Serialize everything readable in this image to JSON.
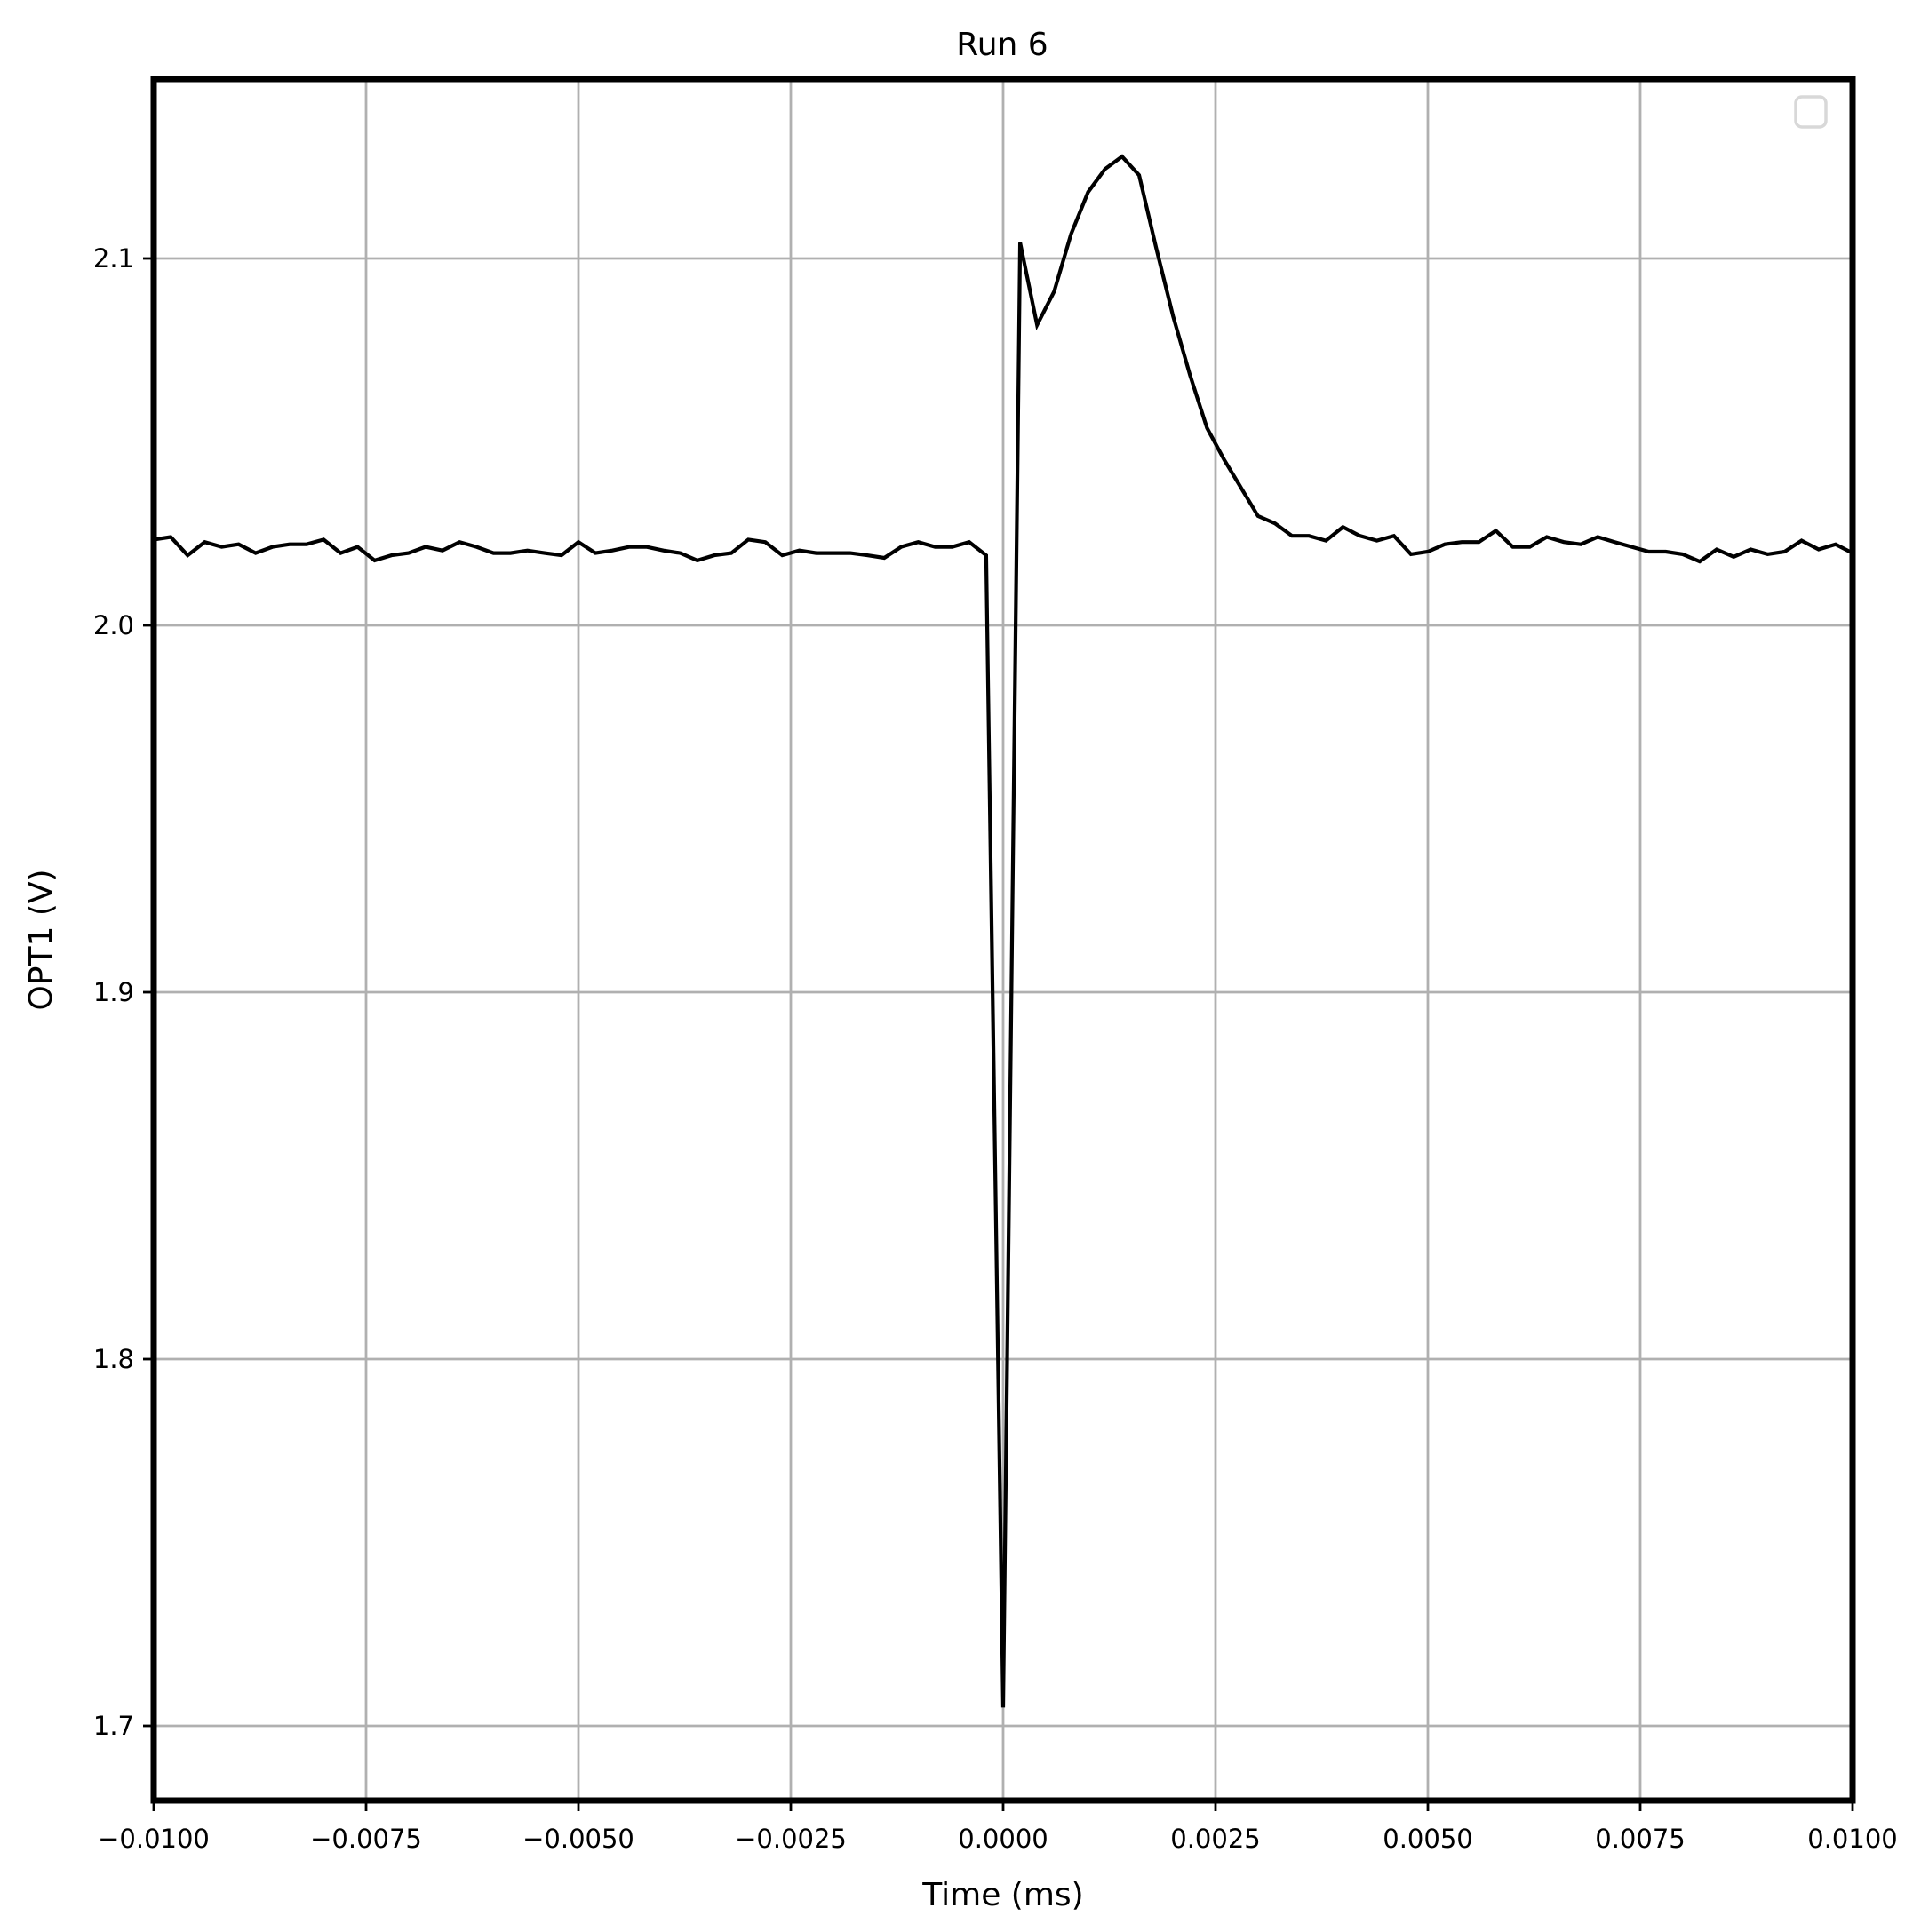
{
  "chart_data": {
    "type": "line",
    "title": "Run 6",
    "xlabel": "Time (ms)",
    "ylabel": "OPT1 (V)",
    "xlim": [
      -0.01,
      0.01
    ],
    "ylim": [
      1.68,
      2.149
    ],
    "grid": true,
    "legend": {
      "position": "upper right",
      "entries": []
    },
    "xticks": [
      -0.01,
      -0.0075,
      -0.005,
      -0.0025,
      0.0,
      0.0025,
      0.005,
      0.0075,
      0.01
    ],
    "xtick_labels": [
      "−0.0100",
      "−0.0075",
      "−0.0050",
      "−0.0025",
      "0.0000",
      "0.0025",
      "0.0050",
      "0.0075",
      "0.0100"
    ],
    "yticks": [
      1.7,
      1.8,
      1.9,
      2.0,
      2.1
    ],
    "ytick_labels": [
      "1.7",
      "1.8",
      "1.9",
      "2.0",
      "2.1"
    ],
    "series": [
      {
        "name": "OPT1",
        "color": "#000000",
        "x": [
          -0.01,
          -0.0098,
          -0.0096,
          -0.0094,
          -0.0092,
          -0.009,
          -0.0088,
          -0.0086,
          -0.0084,
          -0.0082,
          -0.008,
          -0.0078,
          -0.0076,
          -0.0074,
          -0.0072,
          -0.007,
          -0.0068,
          -0.0066,
          -0.0064,
          -0.0062,
          -0.006,
          -0.0058,
          -0.0056,
          -0.0054,
          -0.0052,
          -0.005,
          -0.0048,
          -0.0046,
          -0.0044,
          -0.0042,
          -0.004,
          -0.0038,
          -0.0036,
          -0.0034,
          -0.0032,
          -0.003,
          -0.0028,
          -0.0026,
          -0.0024,
          -0.0022,
          -0.002,
          -0.0018,
          -0.0016,
          -0.0014,
          -0.0012,
          -0.001,
          -0.0008,
          -0.0006,
          -0.0004,
          -0.0002,
          0.0,
          0.0002,
          0.0004,
          0.0006,
          0.0008,
          0.001,
          0.0012,
          0.0014,
          0.0016,
          0.0018,
          0.002,
          0.0022,
          0.0024,
          0.0026,
          0.0028,
          0.003,
          0.0032,
          0.0034,
          0.0036,
          0.0038,
          0.004,
          0.0042,
          0.0044,
          0.0046,
          0.0048,
          0.005,
          0.0052,
          0.0054,
          0.0056,
          0.0058,
          0.006,
          0.0062,
          0.0064,
          0.0066,
          0.0068,
          0.007,
          0.0072,
          0.0074,
          0.0076,
          0.0078,
          0.008,
          0.0082,
          0.0084,
          0.0086,
          0.0088,
          0.009,
          0.0092,
          0.0094,
          0.0096,
          0.0098,
          0.01
        ],
        "y": [
          2.0234,
          2.0241,
          2.0191,
          2.0227,
          2.0214,
          2.0221,
          2.0197,
          2.0214,
          2.0221,
          2.0221,
          2.0234,
          2.0197,
          2.0214,
          2.0177,
          2.0191,
          2.0197,
          2.0214,
          2.0204,
          2.0227,
          2.0214,
          2.0197,
          2.0197,
          2.0204,
          2.0197,
          2.0191,
          2.0227,
          2.0197,
          2.0204,
          2.0214,
          2.0214,
          2.0204,
          2.0197,
          2.0177,
          2.0191,
          2.0197,
          2.0234,
          2.0227,
          2.0191,
          2.0204,
          2.0197,
          2.0197,
          2.0197,
          2.0191,
          2.0184,
          2.0214,
          2.0227,
          2.0214,
          2.0214,
          2.0227,
          2.0191,
          1.705,
          2.1043,
          2.0819,
          2.091,
          2.1067,
          2.1181,
          2.1244,
          2.1278,
          2.1227,
          2.103,
          2.0843,
          2.0682,
          2.0538,
          2.0452,
          2.0375,
          2.0298,
          2.0278,
          2.0244,
          2.0244,
          2.0231,
          2.0268,
          2.0244,
          2.0231,
          2.0244,
          2.0194,
          2.0201,
          2.0221,
          2.0227,
          2.0227,
          2.0258,
          2.0214,
          2.0214,
          2.0241,
          2.0227,
          2.0221,
          2.0241,
          2.0227,
          2.0214,
          2.0201,
          2.0201,
          2.0194,
          2.0174,
          2.0207,
          2.0187,
          2.0207,
          2.0194,
          2.0201,
          2.0231,
          2.0207,
          2.0221,
          2.0197
        ]
      }
    ]
  },
  "colors": {
    "line": "#000000",
    "grid": "#b0b0b0",
    "axes": "#000000",
    "legend_border": "#d8d8d8",
    "background": "#ffffff"
  }
}
